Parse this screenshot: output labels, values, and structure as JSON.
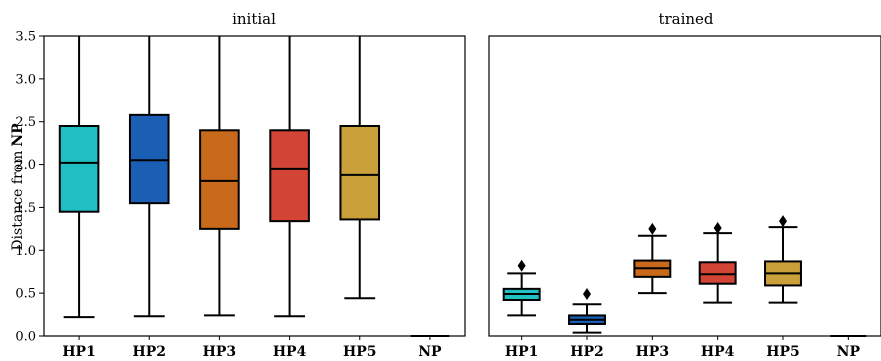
{
  "chart_data": [
    {
      "type": "box",
      "title": "initial",
      "ylabel": "Distance from",
      "ylabel_bold": "NP",
      "ylim": [
        0,
        3.5
      ],
      "yticks": [
        "0.0",
        "0.5",
        "1.0",
        "1.5",
        "2.0",
        "2.5",
        "3.0",
        "3.5"
      ],
      "categories": [
        "HP1",
        "HP2",
        "HP3",
        "HP4",
        "HP5",
        "NP"
      ],
      "colors": [
        "#1fbfc4",
        "#1a5fb4",
        "#c8691c",
        "#d24435",
        "#c9a03a",
        "#888888"
      ],
      "boxes": [
        {
          "whislo": 0.22,
          "q1": 1.45,
          "med": 2.02,
          "q3": 2.45,
          "whishi": 3.5,
          "fliers": []
        },
        {
          "whislo": 0.23,
          "q1": 1.55,
          "med": 2.05,
          "q3": 2.58,
          "whishi": 3.5,
          "fliers": []
        },
        {
          "whislo": 0.24,
          "q1": 1.25,
          "med": 1.81,
          "q3": 2.4,
          "whishi": 3.5,
          "fliers": []
        },
        {
          "whislo": 0.23,
          "q1": 1.34,
          "med": 1.95,
          "q3": 2.4,
          "whishi": 3.5,
          "fliers": []
        },
        {
          "whislo": 0.44,
          "q1": 1.36,
          "med": 1.88,
          "q3": 2.45,
          "whishi": 3.5,
          "fliers": []
        },
        {
          "whislo": 0.0,
          "q1": 0.0,
          "med": 0.0,
          "q3": 0.0,
          "whishi": 0.0,
          "fliers": []
        }
      ]
    },
    {
      "type": "box",
      "title": "trained",
      "ylim": [
        0,
        3.5
      ],
      "categories": [
        "HP1",
        "HP2",
        "HP3",
        "HP4",
        "HP5",
        "NP"
      ],
      "colors": [
        "#1fbfc4",
        "#1a5fb4",
        "#c8691c",
        "#d24435",
        "#c9a03a",
        "#888888"
      ],
      "boxes": [
        {
          "whislo": 0.24,
          "q1": 0.42,
          "med": 0.49,
          "q3": 0.55,
          "whishi": 0.73,
          "fliers": [
            0.82
          ]
        },
        {
          "whislo": 0.04,
          "q1": 0.14,
          "med": 0.19,
          "q3": 0.24,
          "whishi": 0.37,
          "fliers": [
            0.49
          ]
        },
        {
          "whislo": 0.5,
          "q1": 0.69,
          "med": 0.79,
          "q3": 0.88,
          "whishi": 1.17,
          "fliers": [
            1.25
          ]
        },
        {
          "whislo": 0.39,
          "q1": 0.61,
          "med": 0.72,
          "q3": 0.86,
          "whishi": 1.2,
          "fliers": [
            1.26
          ]
        },
        {
          "whislo": 0.39,
          "q1": 0.59,
          "med": 0.73,
          "q3": 0.87,
          "whishi": 1.27,
          "fliers": [
            1.34
          ]
        },
        {
          "whislo": 0.0,
          "q1": 0.0,
          "med": 0.0,
          "q3": 0.0,
          "whishi": 0.0,
          "fliers": []
        }
      ]
    }
  ]
}
